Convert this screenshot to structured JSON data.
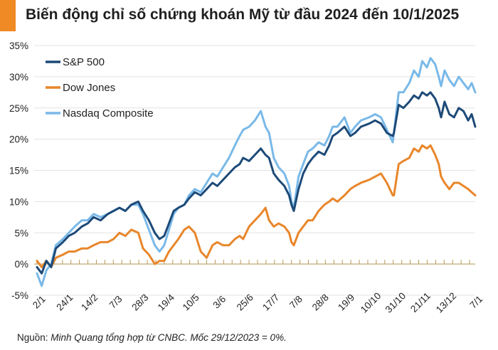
{
  "colors": {
    "accent": "#f08a24",
    "sp500": "#1d4a78",
    "dow": "#e8862a",
    "nasdaq": "#7ab9e8",
    "grid": "#e3e3e3",
    "baseline_tick": "#b59a5a"
  },
  "header": {
    "title": "Biến động chỉ số chứng khoán Mỹ từ đầu 2024 đến 10/1/2025"
  },
  "footer": {
    "note_prefix": "Nguồn: ",
    "note_italic": "Minh Quang tổng hợp từ CNBC. Mốc 29/12/2023 = 0%."
  },
  "chart_data": {
    "type": "line",
    "title": "Biến động chỉ số chứng khoán Mỹ từ đầu 2024 đến 10/1/2025",
    "xlabel": "",
    "ylabel": "",
    "ylim": [
      -5,
      35
    ],
    "yticks": [
      -5,
      0,
      5,
      10,
      15,
      20,
      25,
      30,
      35
    ],
    "ytick_labels": [
      "-5%",
      "0%",
      "5%",
      "10%",
      "15%",
      "20%",
      "25%",
      "30%",
      "35%"
    ],
    "x_range": [
      0,
      372
    ],
    "xticks": [
      {
        "label": "2/1",
        "day": 0
      },
      {
        "label": "24/1",
        "day": 22
      },
      {
        "label": "14/2",
        "day": 43
      },
      {
        "label": "7/3",
        "day": 65
      },
      {
        "label": "28/3",
        "day": 86
      },
      {
        "label": "19/4",
        "day": 108
      },
      {
        "label": "10/5",
        "day": 129
      },
      {
        "label": "3/6",
        "day": 153
      },
      {
        "label": "25/6",
        "day": 175
      },
      {
        "label": "17/7",
        "day": 197
      },
      {
        "label": "7/8",
        "day": 218
      },
      {
        "label": "28/8",
        "day": 239
      },
      {
        "label": "19/9",
        "day": 261
      },
      {
        "label": "10/10",
        "day": 282
      },
      {
        "label": "31/10",
        "day": 303
      },
      {
        "label": "21/11",
        "day": 324
      },
      {
        "label": "13/12",
        "day": 346
      },
      {
        "label": "7/1",
        "day": 371
      }
    ],
    "legend": [
      "S&P 500",
      "Dow Jones",
      "Nasdaq Composite"
    ],
    "legend_position": "top-left",
    "grid": "horizontal",
    "series": [
      {
        "name": "S&P 500",
        "key": "sp500",
        "x": [
          0,
          4,
          8,
          12,
          16,
          22,
          27,
          32,
          38,
          43,
          48,
          54,
          60,
          65,
          70,
          75,
          80,
          86,
          90,
          95,
          100,
          104,
          108,
          112,
          116,
          120,
          125,
          129,
          134,
          139,
          144,
          149,
          153,
          158,
          163,
          168,
          172,
          175,
          180,
          185,
          190,
          194,
          197,
          201,
          205,
          210,
          214,
          216,
          218,
          222,
          226,
          230,
          234,
          239,
          244,
          248,
          251,
          255,
          261,
          266,
          270,
          275,
          282,
          287,
          292,
          297,
          302,
          303,
          307,
          311,
          316,
          320,
          324,
          327,
          331,
          334,
          338,
          341,
          343,
          346,
          350,
          354,
          358,
          362,
          366,
          369,
          372
        ],
        "values": [
          -0.5,
          -1.5,
          0.5,
          -0.5,
          2.5,
          3.5,
          4.5,
          5,
          6,
          6.5,
          7.5,
          7,
          8,
          8.5,
          9,
          8.5,
          9.5,
          10,
          8.5,
          7,
          5,
          4,
          4.5,
          6.5,
          8.5,
          9,
          9.5,
          10.5,
          11.5,
          11,
          12,
          13,
          12.5,
          13.5,
          14.5,
          15.5,
          16,
          17,
          16.5,
          17.5,
          18.5,
          17.5,
          17,
          14.5,
          13.5,
          12.5,
          11,
          9.5,
          8.5,
          12,
          14.5,
          16,
          17,
          18,
          17.5,
          19,
          20.5,
          21,
          22,
          20.5,
          21,
          22,
          22.5,
          23,
          22.5,
          21,
          20.5,
          21,
          25.5,
          25,
          26,
          27,
          26.5,
          27.5,
          27,
          27.5,
          26.5,
          25,
          23.5,
          26,
          24,
          23.5,
          25,
          24.5,
          23,
          24,
          22
        ]
      },
      {
        "name": "Dow Jones",
        "key": "dow",
        "x": [
          0,
          4,
          8,
          12,
          16,
          22,
          27,
          32,
          38,
          43,
          48,
          54,
          60,
          65,
          70,
          75,
          80,
          86,
          90,
          95,
          100,
          104,
          108,
          112,
          116,
          120,
          125,
          129,
          134,
          139,
          144,
          149,
          153,
          158,
          163,
          168,
          172,
          175,
          180,
          185,
          190,
          194,
          197,
          201,
          205,
          210,
          214,
          216,
          218,
          222,
          226,
          230,
          234,
          239,
          244,
          248,
          251,
          255,
          261,
          266,
          270,
          275,
          282,
          287,
          292,
          297,
          302,
          303,
          307,
          311,
          316,
          320,
          324,
          327,
          331,
          334,
          338,
          341,
          343,
          346,
          350,
          354,
          358,
          362,
          366,
          369,
          372
        ],
        "values": [
          0.5,
          -0.5,
          0.5,
          -0.5,
          1,
          1.5,
          2,
          2,
          2.5,
          2.5,
          3,
          3.5,
          3.5,
          4,
          5,
          4.5,
          5.5,
          5,
          2.5,
          1.5,
          0,
          0.5,
          0.5,
          2,
          3,
          4,
          5.5,
          6,
          5,
          2,
          1,
          3,
          3.5,
          3,
          3,
          4,
          4.5,
          4,
          6,
          7,
          8,
          9,
          7,
          6,
          6.5,
          6,
          5,
          3.5,
          3,
          5,
          6,
          7,
          7,
          8.5,
          9.5,
          10,
          10.5,
          10,
          11,
          12,
          12.5,
          13,
          13.5,
          14,
          14.5,
          13,
          11,
          11,
          16,
          16.5,
          17,
          18.5,
          18,
          19,
          18.5,
          19,
          17.5,
          16,
          14,
          13,
          12,
          13,
          13,
          12.5,
          12,
          11.5,
          11
        ]
      },
      {
        "name": "Nasdaq Composite",
        "key": "nasdaq",
        "x": [
          0,
          4,
          8,
          12,
          16,
          22,
          27,
          32,
          38,
          43,
          48,
          54,
          60,
          65,
          70,
          75,
          80,
          86,
          90,
          95,
          100,
          104,
          108,
          112,
          116,
          120,
          125,
          129,
          134,
          139,
          144,
          149,
          153,
          158,
          163,
          168,
          172,
          175,
          180,
          185,
          190,
          194,
          197,
          201,
          205,
          210,
          214,
          216,
          218,
          222,
          226,
          230,
          234,
          239,
          244,
          248,
          251,
          255,
          261,
          266,
          270,
          275,
          282,
          287,
          292,
          297,
          302,
          303,
          307,
          311,
          316,
          320,
          324,
          327,
          331,
          334,
          338,
          341,
          343,
          346,
          350,
          354,
          358,
          362,
          366,
          369,
          372
        ],
        "values": [
          -1.5,
          -3.5,
          -1,
          0,
          3,
          4,
          5,
          6,
          7,
          7,
          8,
          7.5,
          8,
          8.5,
          9,
          8.5,
          9.5,
          9.5,
          8,
          5.5,
          3,
          2,
          3,
          5.5,
          8,
          9,
          9.5,
          11,
          12,
          11.5,
          13,
          14.5,
          14,
          15.5,
          17,
          19,
          20.5,
          21.5,
          22,
          23,
          24.5,
          22,
          21,
          17,
          15.5,
          14.5,
          12.5,
          10,
          9,
          14,
          16,
          18,
          18.5,
          19.5,
          19,
          20.5,
          22,
          22,
          23.5,
          21,
          22,
          23,
          23.5,
          24,
          23.5,
          21.5,
          19.5,
          21,
          27.5,
          27.5,
          29,
          31,
          30,
          32.5,
          31.5,
          33,
          32,
          30,
          28.5,
          31,
          29.5,
          28.5,
          30,
          29,
          28,
          29,
          27.5
        ]
      }
    ]
  }
}
